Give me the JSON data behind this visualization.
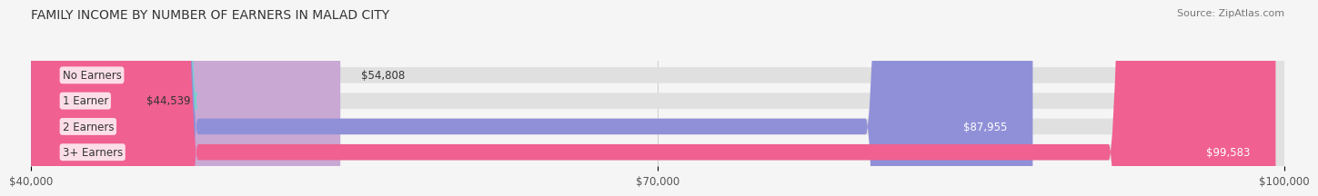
{
  "title": "FAMILY INCOME BY NUMBER OF EARNERS IN MALAD CITY",
  "source": "Source: ZipAtlas.com",
  "categories": [
    "No Earners",
    "1 Earner",
    "2 Earners",
    "3+ Earners"
  ],
  "values": [
    54808,
    44539,
    87955,
    99583
  ],
  "bar_colors": [
    "#c9a8d4",
    "#7ecece",
    "#9090d8",
    "#f06090"
  ],
  "label_colors": [
    "#333333",
    "#333333",
    "#ffffff",
    "#ffffff"
  ],
  "x_min": 40000,
  "x_max": 100000,
  "x_ticks": [
    40000,
    70000,
    100000
  ],
  "x_tick_labels": [
    "$40,000",
    "$70,000",
    "$100,000"
  ],
  "bg_color": "#f5f5f5",
  "bar_bg_color": "#e0e0e0",
  "title_fontsize": 10,
  "label_fontsize": 8.5,
  "value_fontsize": 8.5,
  "source_fontsize": 8
}
